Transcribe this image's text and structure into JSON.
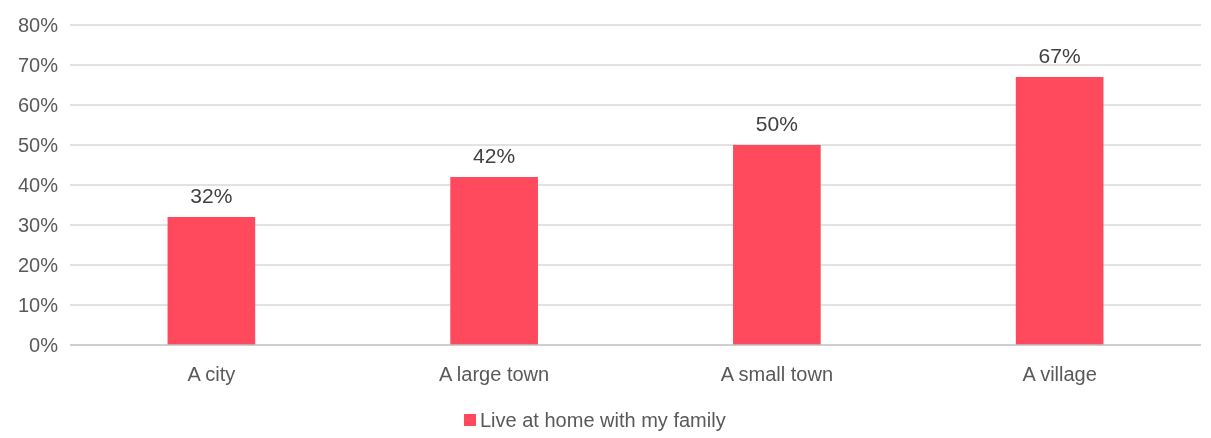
{
  "chart_data": {
    "type": "bar",
    "categories": [
      "A city",
      "A large town",
      "A small town",
      "A village"
    ],
    "series": [
      {
        "name": "Live at home with my family",
        "color": "#ff4a5e",
        "values": [
          32,
          42,
          50,
          67
        ]
      }
    ],
    "value_labels": [
      "32%",
      "42%",
      "50%",
      "67%"
    ],
    "ylim": [
      0,
      80
    ],
    "yticks": [
      {
        "value": 0,
        "label": "0%"
      },
      {
        "value": 10,
        "label": "10%"
      },
      {
        "value": 20,
        "label": "20%"
      },
      {
        "value": 30,
        "label": "30%"
      },
      {
        "value": 40,
        "label": "40%"
      },
      {
        "value": 50,
        "label": "50%"
      },
      {
        "value": 60,
        "label": "60%"
      },
      {
        "value": 70,
        "label": "70%"
      },
      {
        "value": 80,
        "label": "80%"
      }
    ],
    "grid": "y",
    "legend": "bottom"
  }
}
